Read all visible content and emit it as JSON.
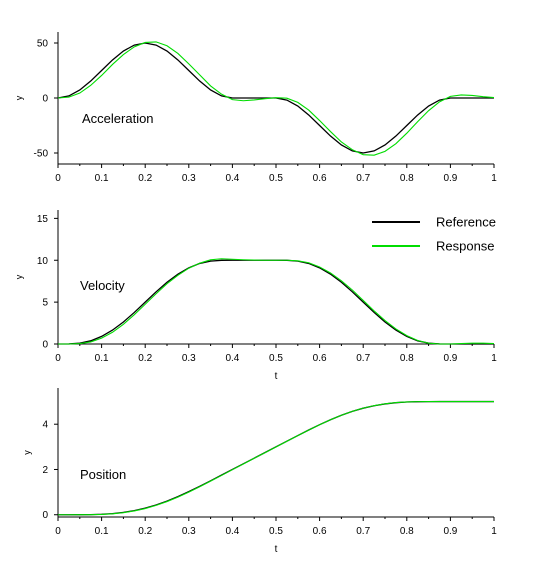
{
  "chart_data": [
    {
      "type": "line",
      "annotation": "Acceleration",
      "xlabel": "",
      "ylabel": "y",
      "xlim": [
        0,
        1
      ],
      "ylim": [
        -60,
        60
      ],
      "xticks": [
        0,
        0.1,
        0.2,
        0.3,
        0.4,
        0.5,
        0.6,
        0.7,
        0.8,
        0.9,
        1
      ],
      "xtick_labels": [
        "0",
        "0.1",
        "0.2",
        "0.3",
        "0.4",
        "0.5",
        "0.6",
        "0.7",
        "0.8",
        "0.9",
        "1"
      ],
      "yticks": [
        -50,
        0,
        50
      ],
      "ytick_labels": [
        "-50",
        "0",
        "50"
      ],
      "grid": false,
      "series": [
        {
          "name": "Reference",
          "color": "#000000",
          "x": [
            0,
            0.025,
            0.05,
            0.075,
            0.1,
            0.125,
            0.15,
            0.175,
            0.2,
            0.225,
            0.25,
            0.275,
            0.3,
            0.325,
            0.35,
            0.375,
            0.4,
            0.425,
            0.45,
            0.475,
            0.5,
            0.525,
            0.55,
            0.575,
            0.6,
            0.625,
            0.65,
            0.675,
            0.7,
            0.725,
            0.75,
            0.775,
            0.8,
            0.825,
            0.85,
            0.875,
            0.9,
            0.925,
            0.95,
            0.975,
            1
          ],
          "y": [
            0,
            1.9,
            7.3,
            15.4,
            25,
            34.6,
            42.7,
            48.1,
            50,
            48.1,
            42.7,
            34.6,
            25,
            15.4,
            7.3,
            1.9,
            0,
            0,
            0,
            0,
            0,
            -1.9,
            -7.3,
            -15.4,
            -25,
            -34.6,
            -42.7,
            -48.1,
            -50,
            -48.1,
            -42.7,
            -34.6,
            -25,
            -15.4,
            -7.3,
            -1.9,
            0,
            0,
            0,
            0,
            0
          ]
        },
        {
          "name": "Response",
          "color": "#00dd00",
          "x": [
            0,
            0.025,
            0.05,
            0.075,
            0.1,
            0.125,
            0.15,
            0.175,
            0.2,
            0.225,
            0.25,
            0.275,
            0.3,
            0.325,
            0.35,
            0.375,
            0.4,
            0.425,
            0.45,
            0.475,
            0.5,
            0.525,
            0.55,
            0.575,
            0.6,
            0.625,
            0.65,
            0.675,
            0.7,
            0.725,
            0.75,
            0.775,
            0.8,
            0.825,
            0.85,
            0.875,
            0.9,
            0.925,
            0.95,
            0.975,
            1
          ],
          "y": [
            0,
            0.8,
            4.5,
            11.5,
            20.5,
            30.5,
            39.5,
            46.5,
            50.5,
            51,
            47.5,
            40.5,
            31,
            21,
            11,
            3.5,
            -1.5,
            -2.5,
            -1.8,
            -0.6,
            0.3,
            -0.2,
            -4,
            -11,
            -20.5,
            -30.5,
            -40,
            -47,
            -51.5,
            -52,
            -48.5,
            -41.5,
            -32,
            -21.5,
            -11.5,
            -3.5,
            1.5,
            2.8,
            2.3,
            1.2,
            0.4
          ]
        }
      ]
    },
    {
      "type": "line",
      "annotation": "Velocity",
      "xlabel": "t",
      "ylabel": "y",
      "xlim": [
        0,
        1
      ],
      "ylim": [
        0,
        16
      ],
      "xticks": [
        0,
        0.1,
        0.2,
        0.3,
        0.4,
        0.5,
        0.6,
        0.7,
        0.8,
        0.9,
        1
      ],
      "xtick_labels": [
        "0",
        "0.1",
        "0.2",
        "0.3",
        "0.4",
        "0.5",
        "0.6",
        "0.7",
        "0.8",
        "0.9",
        "1"
      ],
      "yticks": [
        0,
        5,
        10,
        15
      ],
      "ytick_labels": [
        "0",
        "5",
        "10",
        "15"
      ],
      "grid": false,
      "legend": {
        "position": "top-right",
        "entries": [
          {
            "label": "Reference",
            "color": "#000000"
          },
          {
            "label": "Response",
            "color": "#00dd00"
          }
        ]
      },
      "series": [
        {
          "name": "Reference",
          "color": "#000000",
          "x": [
            0,
            0.025,
            0.05,
            0.075,
            0.1,
            0.125,
            0.15,
            0.175,
            0.2,
            0.225,
            0.25,
            0.275,
            0.3,
            0.325,
            0.35,
            0.375,
            0.4,
            0.425,
            0.45,
            0.475,
            0.5,
            0.525,
            0.55,
            0.575,
            0.6,
            0.625,
            0.65,
            0.675,
            0.7,
            0.725,
            0.75,
            0.775,
            0.8,
            0.825,
            0.85,
            0.875,
            0.9,
            0.925,
            0.95,
            0.975,
            1
          ],
          "y": [
            0,
            0.01,
            0.1,
            0.38,
            0.91,
            1.66,
            2.63,
            3.77,
            5,
            6.23,
            7.37,
            8.34,
            9.09,
            9.62,
            9.9,
            9.99,
            10,
            10,
            10,
            10,
            10,
            9.99,
            9.9,
            9.62,
            9.09,
            8.34,
            7.37,
            6.23,
            5,
            3.77,
            2.63,
            1.66,
            0.91,
            0.38,
            0.1,
            0.01,
            0,
            0,
            0,
            0,
            0
          ]
        },
        {
          "name": "Response",
          "color": "#00dd00",
          "x": [
            0,
            0.025,
            0.05,
            0.075,
            0.1,
            0.125,
            0.15,
            0.175,
            0.2,
            0.225,
            0.25,
            0.275,
            0.3,
            0.325,
            0.35,
            0.375,
            0.4,
            0.425,
            0.45,
            0.475,
            0.5,
            0.525,
            0.55,
            0.575,
            0.6,
            0.625,
            0.65,
            0.675,
            0.7,
            0.725,
            0.75,
            0.775,
            0.8,
            0.825,
            0.85,
            0.875,
            0.9,
            0.925,
            0.95,
            0.975,
            1
          ],
          "y": [
            0,
            0.0,
            0.05,
            0.25,
            0.7,
            1.4,
            2.35,
            3.5,
            4.75,
            6.0,
            7.2,
            8.2,
            9.05,
            9.65,
            10.05,
            10.18,
            10.12,
            10.06,
            10.02,
            10.0,
            10.0,
            10.0,
            9.93,
            9.7,
            9.2,
            8.48,
            7.55,
            6.45,
            5.2,
            3.95,
            2.8,
            1.8,
            1.0,
            0.42,
            0.1,
            0.0,
            0.0,
            0.05,
            0.1,
            0.1,
            0.05
          ]
        }
      ]
    },
    {
      "type": "line",
      "annotation": "Position",
      "xlabel": "t",
      "ylabel": "y",
      "xlim": [
        0,
        1
      ],
      "ylim": [
        -0.1,
        5.6
      ],
      "xticks": [
        0,
        0.1,
        0.2,
        0.3,
        0.4,
        0.5,
        0.6,
        0.7,
        0.8,
        0.9,
        1
      ],
      "xtick_labels": [
        "0",
        "0.1",
        "0.2",
        "0.3",
        "0.4",
        "0.5",
        "0.6",
        "0.7",
        "0.8",
        "0.9",
        "1"
      ],
      "yticks": [
        0,
        2,
        4
      ],
      "ytick_labels": [
        "0",
        "2",
        "4"
      ],
      "grid": false,
      "series": [
        {
          "name": "Reference",
          "color": "#000000",
          "x": [
            0,
            0.025,
            0.05,
            0.075,
            0.1,
            0.125,
            0.15,
            0.175,
            0.2,
            0.225,
            0.25,
            0.275,
            0.3,
            0.325,
            0.35,
            0.375,
            0.4,
            0.425,
            0.45,
            0.475,
            0.5,
            0.525,
            0.55,
            0.575,
            0.6,
            0.625,
            0.65,
            0.675,
            0.7,
            0.725,
            0.75,
            0.775,
            0.8,
            0.825,
            0.85,
            0.875,
            0.9,
            0.925,
            0.95,
            0.975,
            1
          ],
          "y": [
            0,
            0,
            0.001,
            0.006,
            0.02,
            0.05,
            0.104,
            0.183,
            0.292,
            0.433,
            0.604,
            0.802,
            1.021,
            1.256,
            1.501,
            1.75,
            2,
            2.25,
            2.5,
            2.75,
            3,
            3.25,
            3.499,
            3.744,
            3.979,
            4.198,
            4.396,
            4.567,
            4.708,
            4.817,
            4.896,
            4.95,
            4.98,
            4.994,
            4.999,
            5,
            5,
            5,
            5,
            5,
            5
          ]
        },
        {
          "name": "Response",
          "color": "#00dd00",
          "x": [
            0,
            0.025,
            0.05,
            0.075,
            0.1,
            0.125,
            0.15,
            0.175,
            0.2,
            0.225,
            0.25,
            0.275,
            0.3,
            0.325,
            0.35,
            0.375,
            0.4,
            0.425,
            0.45,
            0.475,
            0.5,
            0.525,
            0.55,
            0.575,
            0.6,
            0.625,
            0.65,
            0.675,
            0.7,
            0.725,
            0.75,
            0.775,
            0.8,
            0.825,
            0.85,
            0.875,
            0.9,
            0.925,
            0.95,
            0.975,
            1
          ],
          "y": [
            0,
            0,
            0.001,
            0.004,
            0.015,
            0.042,
            0.092,
            0.168,
            0.274,
            0.413,
            0.582,
            0.78,
            1.0,
            1.235,
            1.483,
            1.736,
            1.99,
            2.242,
            2.494,
            2.745,
            2.995,
            3.245,
            3.494,
            3.74,
            3.977,
            4.197,
            4.396,
            4.568,
            4.71,
            4.82,
            4.9,
            4.955,
            4.985,
            4.998,
            5.0,
            5.0,
            5.0,
            5.0,
            5.0,
            5.0,
            5.0
          ]
        }
      ]
    }
  ]
}
